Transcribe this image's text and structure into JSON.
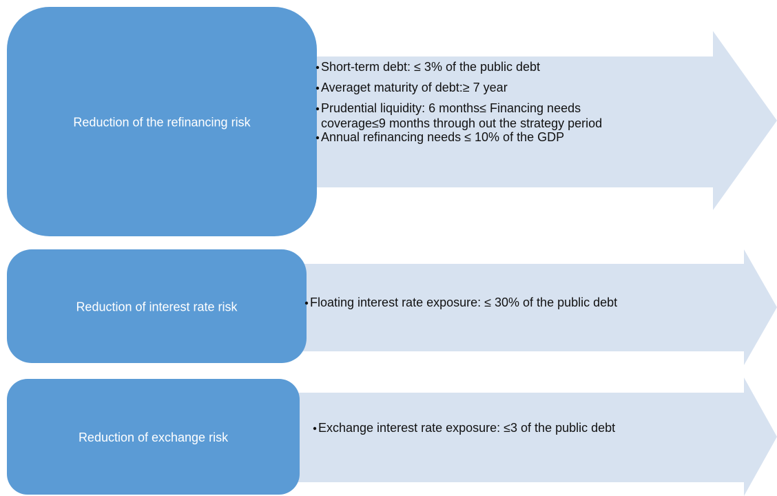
{
  "rows": [
    {
      "label": "Reduction of the refinancing risk",
      "bullets": [
        [
          "Short-term debt: ≤ 3% of the public debt"
        ],
        [
          "Averaget maturity of debt:≥ 7 year"
        ],
        [
          "Prudential liquidity: 6 months≤ Financing needs",
          "coverage≤9 months through out the strategy period"
        ],
        [
          "Annual refinancing needs ≤ 10% of the GDP"
        ]
      ]
    },
    {
      "label": "Reduction of interest rate risk",
      "bullets": [
        [
          "Floating interest rate exposure: ≤ 30%  of the public debt"
        ]
      ]
    },
    {
      "label": "Reduction of exchange risk",
      "bullets": [
        [
          "Exchange interest rate exposure: ≤3  of the public debt"
        ]
      ]
    }
  ]
}
